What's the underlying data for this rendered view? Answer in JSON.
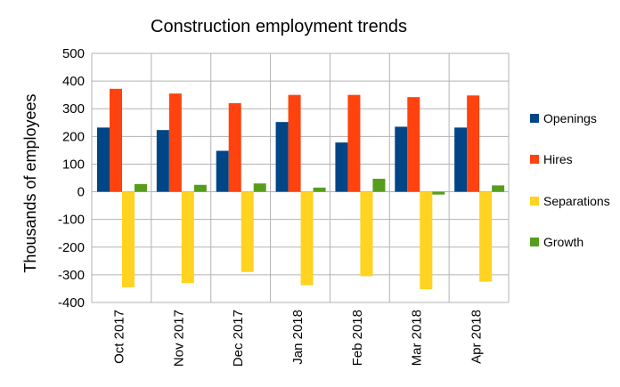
{
  "chart_data": {
    "type": "bar",
    "title": "Construction employment trends",
    "xlabel": "",
    "ylabel": "Thousands of employees",
    "ylim": [
      -400,
      500
    ],
    "yticks": [
      500,
      400,
      300,
      200,
      100,
      0,
      -100,
      -200,
      -300,
      -400
    ],
    "categories": [
      "Oct 2017",
      "Nov 2017",
      "Dec 2017",
      "Jan 2018",
      "Feb 2018",
      "Mar 2018",
      "Apr 2018"
    ],
    "series": [
      {
        "name": "Openings",
        "color": "#004586",
        "values": [
          232,
          223,
          148,
          252,
          178,
          235,
          232
        ]
      },
      {
        "name": "Hires",
        "color": "#ff420e",
        "values": [
          372,
          355,
          320,
          350,
          350,
          342,
          348
        ]
      },
      {
        "name": "Separations",
        "color": "#ffd320",
        "values": [
          -345,
          -330,
          -290,
          -338,
          -305,
          -352,
          -325
        ]
      },
      {
        "name": "Growth",
        "color": "#579d1c",
        "values": [
          28,
          25,
          30,
          15,
          47,
          -10,
          23
        ]
      }
    ],
    "grid": true,
    "legend_position": "right"
  }
}
